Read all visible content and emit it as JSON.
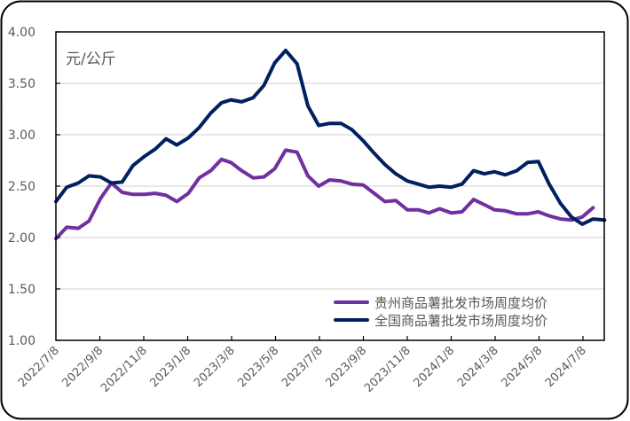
{
  "chart_data": {
    "type": "line",
    "title": "",
    "unit_label": "元/公斤",
    "xlabel": "",
    "ylabel": "",
    "ylim": [
      1.0,
      4.0
    ],
    "yticks": [
      "1.00",
      "1.50",
      "2.00",
      "2.50",
      "3.00",
      "3.50",
      "4.00"
    ],
    "xticks": [
      "2022/7/8",
      "2022/9/8",
      "2022/11/8",
      "2023/1/8",
      "2023/3/8",
      "2023/5/8",
      "2023/7/8",
      "2023/9/8",
      "2023/11/8",
      "2024/1/8",
      "2024/3/8",
      "2024/5/8",
      "2024/7/8"
    ],
    "grid": true,
    "legend_position": "bottom-right",
    "x": [
      "2022-07-08",
      "2022-07-23",
      "2022-08-08",
      "2022-08-23",
      "2022-09-08",
      "2022-09-23",
      "2022-10-08",
      "2022-10-23",
      "2022-11-08",
      "2022-11-23",
      "2022-12-08",
      "2022-12-23",
      "2023-01-08",
      "2023-01-23",
      "2023-02-08",
      "2023-02-23",
      "2023-03-08",
      "2023-03-23",
      "2023-04-08",
      "2023-04-23",
      "2023-05-08",
      "2023-05-23",
      "2023-06-08",
      "2023-06-23",
      "2023-07-08",
      "2023-07-23",
      "2023-08-08",
      "2023-08-23",
      "2023-09-08",
      "2023-09-23",
      "2023-10-08",
      "2023-10-23",
      "2023-11-08",
      "2023-11-23",
      "2023-12-08",
      "2023-12-23",
      "2024-01-08",
      "2024-01-23",
      "2024-02-08",
      "2024-02-23",
      "2024-03-08",
      "2024-03-23",
      "2024-04-08",
      "2024-04-23",
      "2024-05-08",
      "2024-05-23",
      "2024-06-08",
      "2024-06-23",
      "2024-07-08",
      "2024-07-23",
      "2024-08-08"
    ],
    "series": [
      {
        "name": "贵州商品薯批发市场周度均价",
        "color": "#7030A0",
        "values": [
          1.99,
          2.1,
          2.09,
          2.16,
          2.38,
          2.53,
          2.44,
          2.42,
          2.42,
          2.43,
          2.41,
          2.35,
          2.43,
          2.58,
          2.65,
          2.76,
          2.73,
          2.65,
          2.58,
          2.59,
          2.67,
          2.85,
          2.83,
          2.6,
          2.5,
          2.56,
          2.55,
          2.52,
          2.51,
          2.43,
          2.35,
          2.36,
          2.27,
          2.27,
          2.24,
          2.28,
          2.24,
          2.25,
          2.37,
          2.32,
          2.27,
          2.26,
          2.23,
          2.23,
          2.25,
          2.21,
          2.18,
          2.17,
          2.2,
          2.29,
          null
        ]
      },
      {
        "name": "全国商品薯批发市场周度均价",
        "color": "#002060",
        "values": [
          2.35,
          2.49,
          2.53,
          2.6,
          2.59,
          2.53,
          2.54,
          2.7,
          2.79,
          2.86,
          2.96,
          2.9,
          2.97,
          3.07,
          3.21,
          3.31,
          3.34,
          3.32,
          3.36,
          3.48,
          3.7,
          3.82,
          3.69,
          3.28,
          3.09,
          3.11,
          3.11,
          3.05,
          2.94,
          2.82,
          2.71,
          2.62,
          2.55,
          2.52,
          2.49,
          2.5,
          2.49,
          2.52,
          2.65,
          2.62,
          2.64,
          2.61,
          2.65,
          2.73,
          2.74,
          2.52,
          2.33,
          2.2,
          2.13,
          2.18,
          2.17
        ]
      }
    ]
  }
}
